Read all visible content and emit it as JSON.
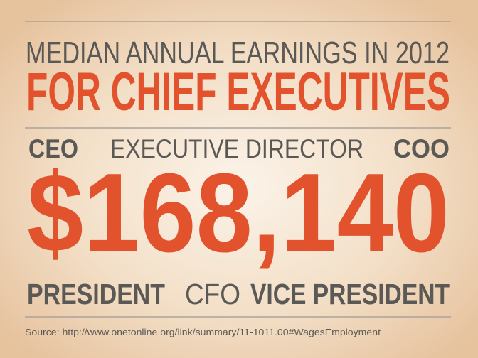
{
  "header": {
    "line1": "MEDIAN ANNUAL EARNINGS IN 2012",
    "line2": "FOR CHIEF EXECUTIVES"
  },
  "titles_top": [
    "CEO",
    "EXECUTIVE DIRECTOR",
    "COO"
  ],
  "amount": "$168,140",
  "titles_bottom": [
    "PRESIDENT",
    "CFO",
    "VICE PRESIDENT"
  ],
  "source": "Source: http://www.onetonline.org/link/summary/11-1011.00#WagesEmployment"
}
